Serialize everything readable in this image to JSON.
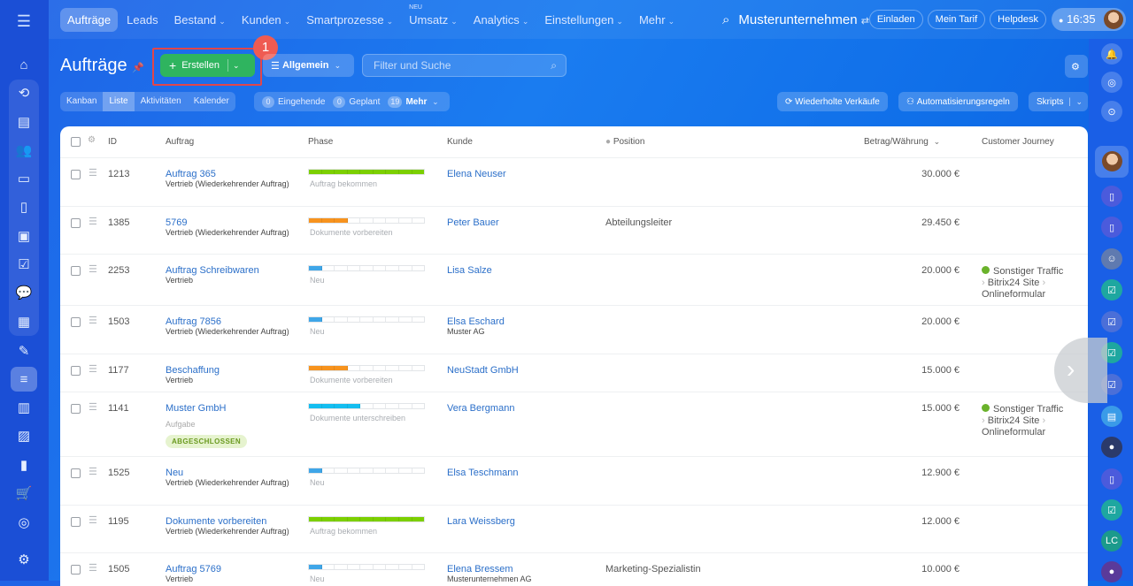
{
  "topnav": {
    "items": [
      {
        "label": "Aufträge",
        "active": true
      },
      {
        "label": "Leads"
      },
      {
        "label": "Bestand",
        "dropdown": true
      },
      {
        "label": "Kunden",
        "dropdown": true
      },
      {
        "label": "Smartprozesse",
        "dropdown": true
      },
      {
        "label": "Umsatz",
        "dropdown": true,
        "badge": "NEU"
      },
      {
        "label": "Analytics",
        "dropdown": true
      },
      {
        "label": "Einstellungen",
        "dropdown": true
      },
      {
        "label": "Mehr",
        "dropdown": true
      }
    ],
    "company": "Musterunternehmen",
    "invite": "Einladen",
    "plan": "Mein Tarif",
    "helpdesk": "Helpdesk",
    "time": "16:35"
  },
  "page": {
    "title": "Aufträge",
    "create_label": "Erstellen",
    "callout_number": "1",
    "pipeline": "Allgemein",
    "search_placeholder": "Filter und Suche",
    "views": [
      "Kanban",
      "Liste",
      "Aktivitäten",
      "Kalender"
    ],
    "active_view": "Liste",
    "counters": [
      {
        "count": "0",
        "label": "Eingehende"
      },
      {
        "count": "0",
        "label": "Geplant"
      },
      {
        "count": "19",
        "label": "Mehr"
      }
    ],
    "repeat_sales": "Wiederholte Verkäufe",
    "automation": "Automatisierungsregeln",
    "scripts": "Skripts"
  },
  "table": {
    "headers": {
      "id": "ID",
      "auftrag": "Auftrag",
      "phase": "Phase",
      "kunde": "Kunde",
      "position": "Position",
      "betrag": "Betrag/Währung",
      "cj": "Customer Journey"
    },
    "phase_colors": {
      "Auftrag bekommen": "#7ccf00",
      "Dokumente vorbereiten": "#f7931e",
      "Neu": "#3fa6e8",
      "Dokumente unterschreiben": "#14bef0"
    },
    "rows": [
      {
        "id": "1213",
        "title": "Auftrag 365",
        "sub": "Vertrieb (Wiederkehrender Auftrag)",
        "phase": "Auftrag bekommen",
        "phase_steps": 9,
        "kunde": "Elena Neuser",
        "kunde_sub": "",
        "position": "",
        "amount": "30.000 €",
        "cj": null
      },
      {
        "id": "1385",
        "title": "5769",
        "sub": "Vertrieb (Wiederkehrender Auftrag)",
        "phase": "Dokumente vorbereiten",
        "phase_steps": 3,
        "kunde": "Peter Bauer",
        "kunde_sub": "",
        "position": "Abteilungsleiter",
        "amount": "29.450 €",
        "cj": null
      },
      {
        "id": "2253",
        "title": "Auftrag Schreibwaren",
        "sub": "Vertrieb",
        "phase": "Neu",
        "phase_steps": 1,
        "kunde": "Lisa Salze",
        "kunde_sub": "",
        "position": "",
        "amount": "20.000 €",
        "cj": [
          "Sonstiger Traffic",
          "Bitrix24 Site",
          "Onlineformular"
        ]
      },
      {
        "id": "1503",
        "title": "Auftrag 7856",
        "sub": "Vertrieb (Wiederkehrender Auftrag)",
        "phase": "Neu",
        "phase_steps": 1,
        "kunde": "Elsa Eschard",
        "kunde_sub": "Muster AG",
        "position": "",
        "amount": "20.000 €",
        "cj": null
      },
      {
        "id": "1177",
        "title": "Beschaffung",
        "sub": "Vertrieb",
        "phase": "Dokumente vorbereiten",
        "phase_steps": 3,
        "kunde": "NeuStadt GmbH",
        "kunde_sub": "",
        "position": "",
        "amount": "15.000 €",
        "cj": null
      },
      {
        "id": "1141",
        "title": "Muster GmbH",
        "sub": "",
        "task": "Aufgabe",
        "tag": "ABGESCHLOSSEN",
        "phase": "Dokumente unterschreiben",
        "phase_steps": 4,
        "kunde": "Vera Bergmann",
        "kunde_sub": "",
        "position": "",
        "amount": "15.000 €",
        "cj": [
          "Sonstiger Traffic",
          "Bitrix24 Site",
          "Onlineformular"
        ]
      },
      {
        "id": "1525",
        "title": "Neu",
        "sub": "Vertrieb (Wiederkehrender Auftrag)",
        "phase": "Neu",
        "phase_steps": 1,
        "kunde": "Elsa Teschmann",
        "kunde_sub": "",
        "position": "",
        "amount": "12.900 €",
        "cj": null
      },
      {
        "id": "1195",
        "title": "Dokumente vorbereiten",
        "sub": "Vertrieb (Wiederkehrender Auftrag)",
        "phase": "Auftrag bekommen",
        "phase_steps": 9,
        "kunde": "Lara Weissberg",
        "kunde_sub": "",
        "position": "",
        "amount": "12.000 €",
        "cj": null
      },
      {
        "id": "1505",
        "title": "Auftrag 5769",
        "sub": "Vertrieb",
        "phase": "Neu",
        "phase_steps": 1,
        "kunde": "Elena Bressem",
        "kunde_sub": "Musterunternehmen AG",
        "position": "Marketing-Spezialistin",
        "amount": "10.000 €",
        "cj": null
      }
    ]
  },
  "rightbar": {
    "initials": "LC"
  }
}
